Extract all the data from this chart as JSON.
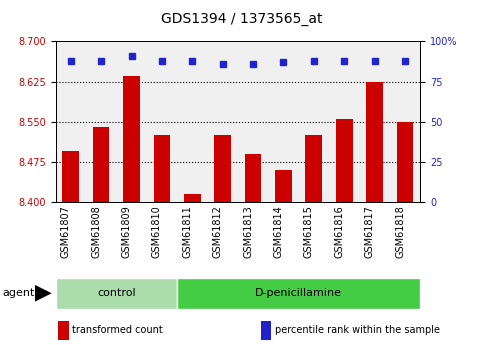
{
  "title": "GDS1394 / 1373565_at",
  "samples": [
    "GSM61807",
    "GSM61808",
    "GSM61809",
    "GSM61810",
    "GSM61811",
    "GSM61812",
    "GSM61813",
    "GSM61814",
    "GSM61815",
    "GSM61816",
    "GSM61817",
    "GSM61818"
  ],
  "bar_values": [
    8.495,
    8.54,
    8.635,
    8.525,
    8.415,
    8.525,
    8.49,
    8.46,
    8.525,
    8.555,
    8.625,
    8.55
  ],
  "percentile_values": [
    88,
    88,
    91,
    88,
    88,
    86,
    86,
    87,
    88,
    88,
    88,
    88
  ],
  "bar_color": "#cc0000",
  "dot_color": "#2222cc",
  "ylim_left": [
    8.4,
    8.7
  ],
  "ylim_right": [
    0,
    100
  ],
  "yticks_left": [
    8.4,
    8.475,
    8.55,
    8.625,
    8.7
  ],
  "yticks_right": [
    0,
    25,
    50,
    75,
    100
  ],
  "grid_values": [
    8.625,
    8.55,
    8.475
  ],
  "groups": [
    {
      "label": "control",
      "start": 0,
      "end": 4,
      "color": "#aaddaa"
    },
    {
      "label": "D-penicillamine",
      "start": 4,
      "end": 12,
      "color": "#44cc44"
    }
  ],
  "agent_label": "agent",
  "legend_items": [
    {
      "color": "#cc0000",
      "label": "transformed count"
    },
    {
      "color": "#2222cc",
      "label": "percentile rank within the sample"
    }
  ],
  "title_fontsize": 10,
  "tick_fontsize": 7,
  "bar_width": 0.55,
  "background_color": "#ffffff",
  "plot_bg_color": "#f0f0f0"
}
